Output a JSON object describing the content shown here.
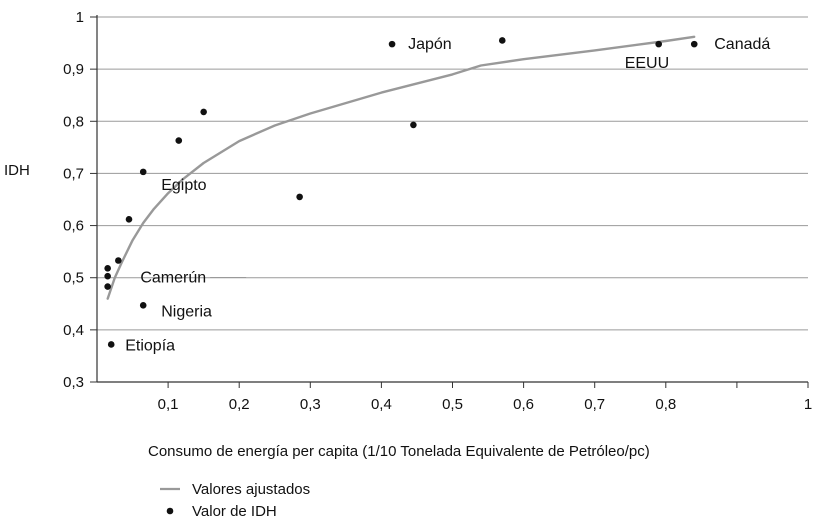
{
  "chart_data": {
    "type": "scatter",
    "title": "",
    "xlabel": "Consumo de energía per capita (1/10 Tonelada Equivalente de Petróleo/pc)",
    "ylabel": "IDH",
    "xlim": [
      0,
      1
    ],
    "ylim": [
      0.3,
      1
    ],
    "x_ticks": [
      "0,1",
      "0,2",
      "0,3",
      "0,4",
      "0,5",
      "0,6",
      "0,7",
      "0,8",
      "1"
    ],
    "y_ticks": [
      "0,3",
      "0,4",
      "0,5",
      "0,6",
      "0,7",
      "0,8",
      "0,9",
      "1"
    ],
    "grid": "horizontal",
    "legend": {
      "placement": "bottom-left",
      "entries": [
        "Valores ajustados",
        "Valor de IDH"
      ]
    },
    "series": [
      {
        "name": "Valores ajustados",
        "kind": "line",
        "color": "#999999",
        "x": [
          0.015,
          0.025,
          0.035,
          0.05,
          0.065,
          0.08,
          0.1,
          0.12,
          0.15,
          0.2,
          0.25,
          0.3,
          0.4,
          0.5,
          0.54,
          0.6,
          0.7,
          0.8,
          0.84
        ],
        "y": [
          0.46,
          0.5,
          0.53,
          0.572,
          0.605,
          0.632,
          0.662,
          0.688,
          0.72,
          0.762,
          0.792,
          0.815,
          0.855,
          0.89,
          0.907,
          0.919,
          0.936,
          0.954,
          0.962
        ]
      },
      {
        "name": "Valor de IDH",
        "kind": "scatter",
        "color": "#111111",
        "points": [
          {
            "x": 0.015,
            "y": 0.518,
            "label": ""
          },
          {
            "x": 0.015,
            "y": 0.503,
            "label": ""
          },
          {
            "x": 0.015,
            "y": 0.483,
            "label": ""
          },
          {
            "x": 0.02,
            "y": 0.372,
            "label": "Etiopía"
          },
          {
            "x": 0.03,
            "y": 0.533,
            "label": "Camerún"
          },
          {
            "x": 0.045,
            "y": 0.612,
            "label": ""
          },
          {
            "x": 0.065,
            "y": 0.703,
            "label": "Egipto"
          },
          {
            "x": 0.065,
            "y": 0.447,
            "label": "Nigeria"
          },
          {
            "x": 0.115,
            "y": 0.763,
            "label": ""
          },
          {
            "x": 0.15,
            "y": 0.818,
            "label": ""
          },
          {
            "x": 0.285,
            "y": 0.655,
            "label": ""
          },
          {
            "x": 0.415,
            "y": 0.948,
            "label": "Japón"
          },
          {
            "x": 0.445,
            "y": 0.793,
            "label": ""
          },
          {
            "x": 0.57,
            "y": 0.955,
            "label": ""
          },
          {
            "x": 0.79,
            "y": 0.948,
            "label": "EEUU"
          },
          {
            "x": 0.84,
            "y": 0.948,
            "label": "Canadá"
          }
        ]
      }
    ]
  }
}
